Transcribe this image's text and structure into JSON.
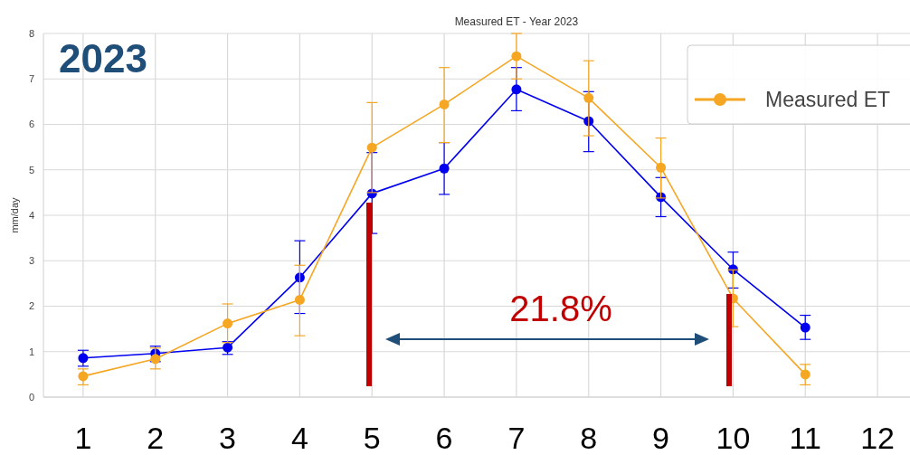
{
  "chart_data": {
    "type": "line",
    "title": "Measured ET - Year 2023",
    "ylabel": "mm/day",
    "x": [
      1,
      2,
      3,
      4,
      5,
      6,
      7,
      8,
      9,
      10,
      11
    ],
    "series": [
      {
        "color": "#0000ee",
        "values": [
          0.86,
          0.96,
          1.09,
          2.63,
          4.48,
          5.03,
          6.77,
          6.07,
          4.4,
          2.81,
          1.53
        ],
        "errors": [
          [
            0.68,
            1.03
          ],
          [
            0.78,
            1.12
          ],
          [
            0.94,
            1.22
          ],
          [
            1.84,
            3.44
          ],
          [
            3.6,
            5.38
          ],
          [
            4.46,
            5.6
          ],
          [
            6.3,
            7.25
          ],
          [
            5.4,
            6.72
          ],
          [
            3.97,
            4.83
          ],
          [
            2.4,
            3.19
          ],
          [
            1.27,
            1.8
          ]
        ]
      },
      {
        "name": "Measured ET",
        "color": "#f5a623",
        "values": [
          0.46,
          0.84,
          1.62,
          2.14,
          5.49,
          6.44,
          7.5,
          6.58,
          5.05,
          2.17,
          0.5
        ],
        "errors": [
          [
            0.27,
            0.62
          ],
          [
            0.62,
            1.08
          ],
          [
            1.2,
            2.05
          ],
          [
            1.35,
            2.9
          ],
          [
            4.5,
            6.48
          ],
          [
            5.6,
            7.25
          ],
          [
            7.0,
            8.0
          ],
          [
            5.75,
            7.4
          ],
          [
            4.38,
            5.7
          ],
          [
            1.55,
            2.8
          ],
          [
            0.27,
            0.72
          ]
        ]
      }
    ],
    "xlim": [
      0.45,
      12.45
    ],
    "xticks": [
      1,
      2,
      3,
      4,
      5,
      6,
      7,
      8,
      9,
      10,
      11,
      12
    ],
    "ylim": [
      0,
      8
    ],
    "yticks": [
      0,
      1,
      2,
      3,
      4,
      5,
      6,
      7,
      8
    ],
    "grid": true,
    "legend": "top right",
    "marker": "circle",
    "line_style": "solid",
    "annotations": [
      "2023",
      "21.8%"
    ]
  }
}
